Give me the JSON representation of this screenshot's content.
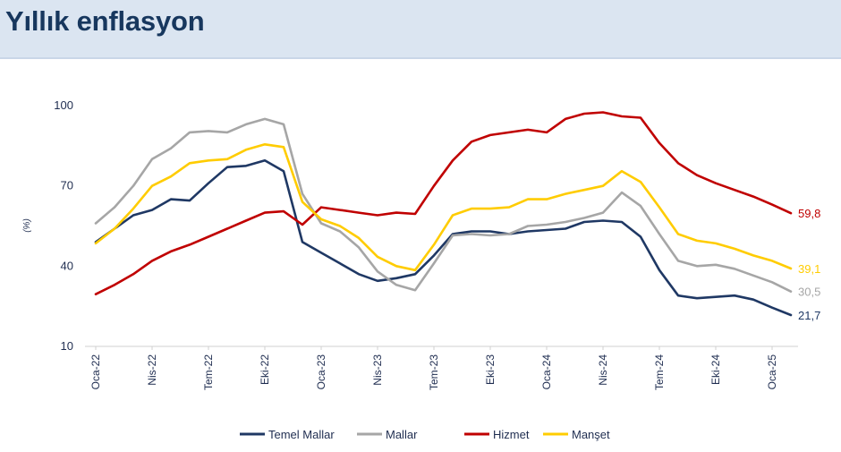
{
  "header": {
    "title": "Yıllık enflasyon"
  },
  "chart_data": {
    "type": "line",
    "title": "",
    "xlabel": "",
    "ylabel": "(%)",
    "ylim": [
      10,
      100
    ],
    "yticks": [
      10,
      40,
      70,
      100
    ],
    "ytick_labels": [
      "10",
      "40",
      "70",
      "100"
    ],
    "grid": false,
    "legend_position": "bottom",
    "x": [
      "Oca-22",
      "Şub-22",
      "Mar-22",
      "Nis-22",
      "May-22",
      "Haz-22",
      "Tem-22",
      "Ağu-22",
      "Eyl-22",
      "Eki-22",
      "Kas-22",
      "Ara-22",
      "Oca-23",
      "Şub-23",
      "Mar-23",
      "Nis-23",
      "May-23",
      "Haz-23",
      "Tem-23",
      "Ağu-23",
      "Eyl-23",
      "Eki-23",
      "Kas-23",
      "Ara-23",
      "Oca-24",
      "Şub-24",
      "Mar-24",
      "Nis-24",
      "May-24",
      "Haz-24",
      "Tem-24",
      "Ağu-24",
      "Eyl-24",
      "Eki-24",
      "Kas-24",
      "Ara-24",
      "Oca-25",
      "Şub-25"
    ],
    "x_tick_labels": [
      {
        "index": 0,
        "label": "Oca-22"
      },
      {
        "index": 3,
        "label": "Nis-22"
      },
      {
        "index": 6,
        "label": "Tem-22"
      },
      {
        "index": 9,
        "label": "Eki-22"
      },
      {
        "index": 12,
        "label": "Oca-23"
      },
      {
        "index": 15,
        "label": "Nis-23"
      },
      {
        "index": 18,
        "label": "Tem-23"
      },
      {
        "index": 21,
        "label": "Eki-23"
      },
      {
        "index": 24,
        "label": "Oca-24"
      },
      {
        "index": 27,
        "label": "Nis-24"
      },
      {
        "index": 30,
        "label": "Tem-24"
      },
      {
        "index": 33,
        "label": "Eki-24"
      },
      {
        "index": 36,
        "label": "Oca-25"
      }
    ],
    "series": [
      {
        "name": "Temel Mallar",
        "color": "#1f3864",
        "end_label": "21,7",
        "values": [
          49,
          54,
          59,
          61,
          65,
          64.5,
          71,
          77,
          77.5,
          79.5,
          75.5,
          49,
          45,
          41,
          37,
          34.5,
          35.5,
          37,
          44,
          52,
          53,
          53,
          52,
          53,
          53.5,
          54,
          56.5,
          57,
          56.5,
          51,
          38.5,
          29,
          28,
          28.5,
          29,
          27.5,
          24.5,
          21.7
        ]
      },
      {
        "name": "Mallar",
        "color": "#a6a6a6",
        "end_label": "30,5",
        "values": [
          56,
          62,
          70,
          80,
          84,
          90,
          90.5,
          90,
          93,
          95,
          93,
          67,
          56,
          53,
          47,
          38,
          33,
          31,
          41,
          51.5,
          52,
          51.5,
          52,
          55,
          55.5,
          56.5,
          58,
          60,
          67.5,
          62.5,
          52,
          42,
          40,
          40.5,
          39,
          36.5,
          34,
          30.5
        ]
      },
      {
        "name": "Hizmet",
        "color": "#c00000",
        "end_label": "59,8",
        "values": [
          29.5,
          33,
          37,
          42,
          45.5,
          48,
          51,
          54,
          57,
          60,
          60.5,
          55.5,
          62,
          61,
          60,
          59,
          60,
          59.5,
          70,
          79.5,
          86.5,
          89,
          90,
          91,
          90,
          95,
          97,
          97.5,
          96,
          95.5,
          86,
          78.5,
          74,
          71,
          68.5,
          66,
          63,
          59.8
        ]
      },
      {
        "name": "Manşet",
        "color": "#ffcc00",
        "end_label": "39,1",
        "values": [
          48.5,
          54,
          61.5,
          70,
          73.5,
          78.5,
          79.5,
          80,
          83.5,
          85.5,
          84.5,
          64,
          57.5,
          55,
          50.5,
          43.5,
          40,
          38.5,
          48,
          59,
          61.5,
          61.5,
          62,
          65,
          65,
          67,
          68.5,
          70,
          75.5,
          71.5,
          62,
          52,
          49.5,
          48.5,
          46.5,
          44,
          42,
          39.1
        ]
      }
    ]
  }
}
